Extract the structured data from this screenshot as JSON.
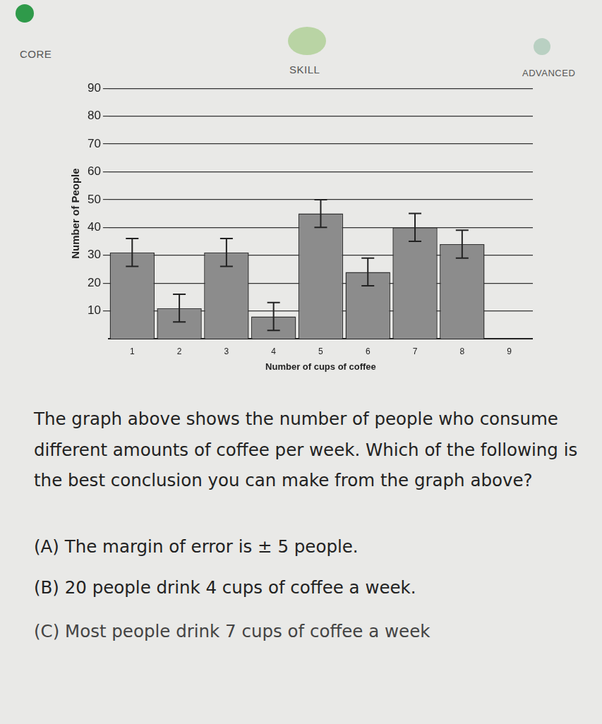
{
  "header": {
    "left": "CORE",
    "middle": "SKILL",
    "right": "ADVANCED"
  },
  "chart_data": {
    "type": "bar",
    "x_label": "Number of cups of coffee",
    "y_label": "Number of People",
    "categories": [
      "1",
      "2",
      "3",
      "4",
      "5",
      "6",
      "7",
      "8",
      "9"
    ],
    "values": [
      31,
      11,
      31,
      8,
      45,
      24,
      40,
      34,
      0
    ],
    "errors": [
      5,
      5,
      5,
      5,
      5,
      5,
      5,
      5,
      null
    ],
    "color": "#8c8c8c",
    "ylim": [
      0,
      90
    ],
    "yticks": [
      10,
      20,
      30,
      40,
      50,
      60,
      70,
      80,
      90
    ],
    "grid": true
  },
  "question": "The graph above shows the number of people who consume different amounts of coffee per week. Which of the following is the best conclusion you can make from the graph above?",
  "options": [
    "(A) The margin of error is ± 5 people.",
    "(B) 20 people drink 4 cups of coffee a week.",
    "(C) Most people drink 7 cups of coffee a week"
  ]
}
